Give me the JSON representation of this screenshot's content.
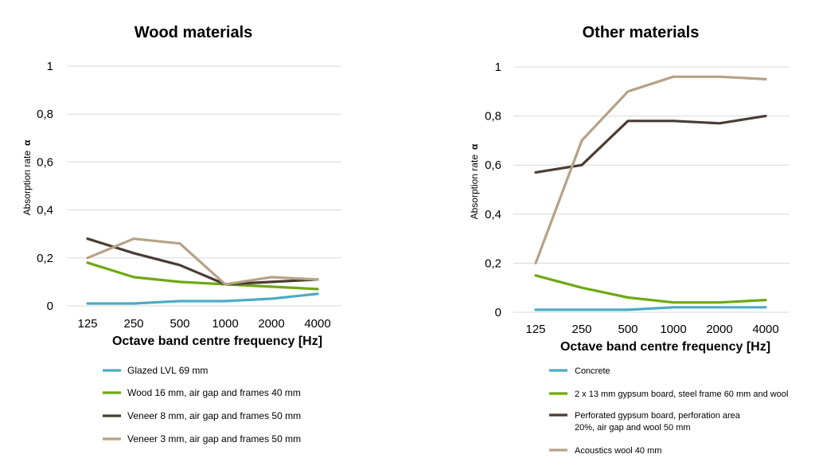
{
  "chart_data": [
    {
      "type": "line",
      "title": "Wood materials",
      "xlabel": "Octave band centre frequency [Hz]",
      "ylabel": "Absorption rate",
      "ylabel_symbol": "α",
      "categories": [
        "125",
        "250",
        "500",
        "1000",
        "2000",
        "4000"
      ],
      "ylim": [
        0,
        1
      ],
      "yticks": [
        "0",
        "0,2",
        "0,4",
        "0,6",
        "0,8",
        "1"
      ],
      "grid": true,
      "legend_position": "bottom",
      "series": [
        {
          "name": "Glazed LVL 69 mm",
          "color": "#4bacc6",
          "values": [
            0.01,
            0.01,
            0.02,
            0.02,
            0.03,
            0.05
          ]
        },
        {
          "name": "Wood 16 mm, air gap and frames 40 mm",
          "color": "#6fa812",
          "values": [
            0.18,
            0.12,
            0.1,
            0.09,
            0.08,
            0.07
          ]
        },
        {
          "name": "Veneer 8 mm, air gap and frames 50 mm",
          "color": "#4a3c33",
          "values": [
            0.28,
            0.22,
            0.17,
            0.09,
            0.1,
            0.11
          ]
        },
        {
          "name": "Veneer 3 mm, air gap and frames 50 mm",
          "color": "#b5a286",
          "values": [
            0.2,
            0.28,
            0.26,
            0.09,
            0.12,
            0.11
          ]
        }
      ]
    },
    {
      "type": "line",
      "title": "Other materials",
      "xlabel": "Octave band centre frequency [Hz]",
      "ylabel": "Absorption rate",
      "ylabel_symbol": "α",
      "categories": [
        "125",
        "250",
        "500",
        "1000",
        "2000",
        "4000"
      ],
      "ylim": [
        0,
        1
      ],
      "yticks": [
        "0",
        "0,2",
        "0,4",
        "0,6",
        "0,8",
        "1"
      ],
      "grid": true,
      "legend_position": "bottom",
      "series": [
        {
          "name": "Concrete",
          "color": "#4bacc6",
          "values": [
            0.01,
            0.01,
            0.01,
            0.02,
            0.02,
            0.02
          ]
        },
        {
          "name": "2 x 13 mm gypsum board, steel frame 60 mm and wool",
          "color": "#6fa812",
          "values": [
            0.15,
            0.1,
            0.06,
            0.04,
            0.04,
            0.05
          ]
        },
        {
          "name": "Perforated gypsum board, perforation area 20%, air gap and wool 50 mm",
          "color": "#4a3c33",
          "values": [
            0.57,
            0.6,
            0.78,
            0.78,
            0.77,
            0.8
          ]
        },
        {
          "name": "Acoustics wool 40 mm",
          "color": "#b5a286",
          "values": [
            0.2,
            0.7,
            0.9,
            0.96,
            0.96,
            0.95
          ]
        }
      ]
    }
  ]
}
